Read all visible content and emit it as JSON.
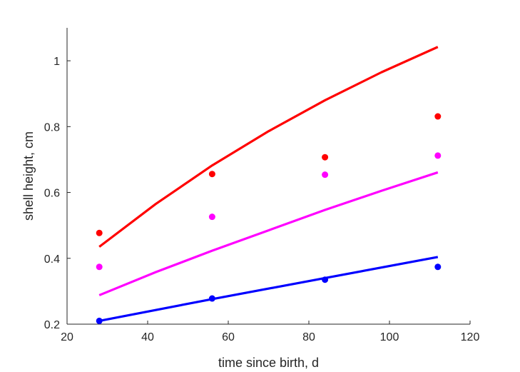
{
  "chart_data": {
    "type": "line",
    "title": "",
    "xlabel": "time since birth, d",
    "ylabel": "shell height, cm",
    "xlim": [
      20,
      120
    ],
    "ylim": [
      0.2,
      1.1
    ],
    "xticks": [
      20,
      40,
      60,
      80,
      100,
      120
    ],
    "yticks": [
      0.2,
      0.4,
      0.6,
      0.8,
      1.0
    ],
    "xtick_labels": [
      "20",
      "40",
      "60",
      "80",
      "100",
      "120"
    ],
    "ytick_labels": [
      "0.2",
      "0.4",
      "0.6",
      "0.8",
      "1"
    ],
    "grid": false,
    "legend": false,
    "series": [
      {
        "color": "#ff0000",
        "curve_x": [
          28,
          42,
          56,
          70,
          84,
          98,
          112
        ],
        "curve_y": [
          0.435,
          0.565,
          0.682,
          0.786,
          0.88,
          0.965,
          1.042
        ],
        "points_x": [
          28,
          56,
          84,
          112
        ],
        "points_y": [
          0.477,
          0.656,
          0.707,
          0.831
        ]
      },
      {
        "color": "#ff00ff",
        "curve_x": [
          28,
          42,
          56,
          70,
          84,
          98,
          112
        ],
        "curve_y": [
          0.288,
          0.358,
          0.423,
          0.485,
          0.547,
          0.605,
          0.661
        ],
        "points_x": [
          28,
          56,
          84,
          112
        ],
        "points_y": [
          0.374,
          0.526,
          0.654,
          0.712
        ]
      },
      {
        "color": "#0000ff",
        "curve_x": [
          28,
          56,
          84,
          112
        ],
        "curve_y": [
          0.21,
          0.276,
          0.34,
          0.404
        ],
        "points_x": [
          28,
          56,
          84,
          112
        ],
        "points_y": [
          0.21,
          0.278,
          0.335,
          0.374
        ]
      }
    ]
  }
}
